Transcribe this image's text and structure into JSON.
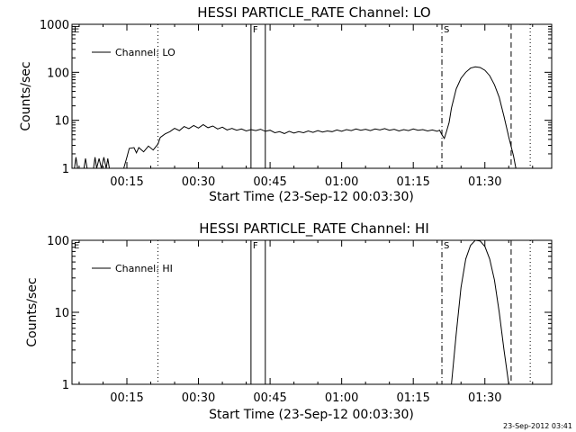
{
  "footer": {
    "timestamp": "23-Sep-2012 03:41"
  },
  "chart_data": [
    {
      "type": "line",
      "title": "HESSI PARTICLE_RATE Channel: LO",
      "xlabel": "Start Time (23-Sep-12 00:03:30)",
      "ylabel": "Counts/sec",
      "yscale": "log",
      "xlim": [
        "00:03:30",
        "01:44:00"
      ],
      "ylim": [
        1,
        1000
      ],
      "x_tick_labels": [
        "00:15",
        "00:30",
        "00:45",
        "01:00",
        "01:15",
        "01:30"
      ],
      "y_tick_labels": [
        "1",
        "10",
        "100",
        "1000"
      ],
      "legend": {
        "placement": "top-left",
        "entries": [
          "Channel: LO"
        ]
      },
      "markers": [
        {
          "label": "E",
          "time": "00:03:30",
          "style": "none"
        },
        {
          "label": "",
          "time": "00:21:30",
          "style": "dotted"
        },
        {
          "label": "F",
          "time": "00:41:00",
          "style": "solid"
        },
        {
          "label": "",
          "time": "00:44:00",
          "style": "solid"
        },
        {
          "label": "S",
          "time": "01:21:00",
          "style": "dash-dot"
        },
        {
          "label": "",
          "time": "01:35:30",
          "style": "dashed"
        },
        {
          "label": "",
          "time": "01:39:30",
          "style": "dotted"
        }
      ],
      "series": [
        {
          "points": [
            [
              "00:04:00",
              1
            ],
            [
              "00:04:20",
              1.7
            ],
            [
              "00:04:40",
              1
            ],
            [
              "00:06:00",
              1
            ],
            [
              "00:06:20",
              1.6
            ],
            [
              "00:06:40",
              1
            ],
            [
              "00:08:00",
              1
            ],
            [
              "00:08:20",
              1.7
            ],
            [
              "00:08:40",
              1
            ],
            [
              "00:09:10",
              1.6
            ],
            [
              "00:09:40",
              1
            ],
            [
              "00:10:10",
              1.7
            ],
            [
              "00:10:40",
              1
            ],
            [
              "00:11:00",
              1.6
            ],
            [
              "00:11:20",
              1
            ],
            [
              "00:14:20",
              1
            ],
            [
              "00:15:00",
              1.7
            ],
            [
              "00:15:30",
              2.6
            ],
            [
              "00:16:30",
              2.7
            ],
            [
              "00:17:00",
              2.1
            ],
            [
              "00:17:30",
              2.7
            ],
            [
              "00:18:30",
              2.2
            ],
            [
              "00:19:30",
              2.9
            ],
            [
              "00:20:30",
              2.4
            ],
            [
              "00:21:30",
              3.2
            ],
            [
              "00:22:00",
              4.4
            ],
            [
              "00:23:00",
              5.2
            ],
            [
              "00:24:00",
              5.8
            ],
            [
              "00:25:00",
              6.8
            ],
            [
              "00:26:00",
              6.1
            ],
            [
              "00:27:00",
              7.4
            ],
            [
              "00:28:00",
              6.7
            ],
            [
              "00:29:00",
              7.8
            ],
            [
              "00:30:00",
              6.9
            ],
            [
              "00:31:00",
              8.1
            ],
            [
              "00:32:00",
              7.0
            ],
            [
              "00:33:00",
              7.6
            ],
            [
              "00:34:00",
              6.6
            ],
            [
              "00:35:00",
              7.2
            ],
            [
              "00:36:00",
              6.3
            ],
            [
              "00:37:00",
              6.8
            ],
            [
              "00:38:00",
              6.2
            ],
            [
              "00:39:00",
              6.6
            ],
            [
              "00:40:00",
              6.0
            ],
            [
              "00:41:00",
              6.4
            ],
            [
              "00:42:00",
              6.1
            ],
            [
              "00:43:00",
              6.5
            ],
            [
              "00:44:00",
              5.9
            ],
            [
              "00:45:00",
              6.2
            ],
            [
              "00:46:00",
              5.5
            ],
            [
              "00:47:00",
              5.8
            ],
            [
              "00:48:00",
              5.3
            ],
            [
              "00:49:00",
              5.9
            ],
            [
              "00:50:00",
              5.4
            ],
            [
              "00:51:00",
              5.8
            ],
            [
              "00:52:00",
              5.5
            ],
            [
              "00:53:00",
              6.0
            ],
            [
              "00:54:00",
              5.6
            ],
            [
              "00:55:00",
              6.1
            ],
            [
              "00:56:00",
              5.7
            ],
            [
              "00:57:00",
              6.0
            ],
            [
              "00:58:00",
              5.8
            ],
            [
              "00:59:00",
              6.3
            ],
            [
              "01:00:00",
              5.9
            ],
            [
              "01:01:00",
              6.4
            ],
            [
              "01:02:00",
              6.1
            ],
            [
              "01:03:00",
              6.6
            ],
            [
              "01:04:00",
              6.2
            ],
            [
              "01:05:00",
              6.5
            ],
            [
              "01:06:00",
              6.1
            ],
            [
              "01:07:00",
              6.6
            ],
            [
              "01:08:00",
              6.3
            ],
            [
              "01:09:00",
              6.7
            ],
            [
              "01:10:00",
              6.2
            ],
            [
              "01:11:00",
              6.5
            ],
            [
              "01:12:00",
              6.0
            ],
            [
              "01:13:00",
              6.4
            ],
            [
              "01:14:00",
              6.1
            ],
            [
              "01:15:00",
              6.6
            ],
            [
              "01:16:00",
              6.2
            ],
            [
              "01:17:00",
              6.4
            ],
            [
              "01:18:00",
              6.0
            ],
            [
              "01:19:00",
              6.3
            ],
            [
              "01:20:00",
              5.9
            ],
            [
              "01:20:30",
              6.2
            ],
            [
              "01:21:00",
              5.0
            ],
            [
              "01:21:30",
              4.2
            ],
            [
              "01:22:00",
              6.0
            ],
            [
              "01:22:30",
              9.0
            ],
            [
              "01:23:00",
              18
            ],
            [
              "01:24:00",
              45
            ],
            [
              "01:25:00",
              75
            ],
            [
              "01:26:00",
              100
            ],
            [
              "01:27:00",
              122
            ],
            [
              "01:28:00",
              130
            ],
            [
              "01:29:00",
              126
            ],
            [
              "01:30:00",
              110
            ],
            [
              "01:31:00",
              85
            ],
            [
              "01:32:00",
              55
            ],
            [
              "01:33:00",
              30
            ],
            [
              "01:34:00",
              12
            ],
            [
              "01:35:00",
              4.5
            ],
            [
              "01:36:00",
              1.8
            ],
            [
              "01:36:30",
              1.0
            ]
          ]
        }
      ]
    },
    {
      "type": "line",
      "title": "HESSI PARTICLE_RATE Channel: HI",
      "xlabel": "Start Time (23-Sep-12 00:03:30)",
      "ylabel": "Counts/sec",
      "yscale": "log",
      "xlim": [
        "00:03:30",
        "01:44:00"
      ],
      "ylim": [
        1,
        100
      ],
      "x_tick_labels": [
        "00:15",
        "00:30",
        "00:45",
        "01:00",
        "01:15",
        "01:30"
      ],
      "y_tick_labels": [
        "1",
        "10",
        "100"
      ],
      "legend": {
        "placement": "top-left",
        "entries": [
          "Channel: HI"
        ]
      },
      "markers": [
        {
          "label": "E",
          "time": "00:03:30",
          "style": "none"
        },
        {
          "label": "",
          "time": "00:21:30",
          "style": "dotted"
        },
        {
          "label": "F",
          "time": "00:41:00",
          "style": "solid"
        },
        {
          "label": "",
          "time": "00:44:00",
          "style": "solid"
        },
        {
          "label": "S",
          "time": "01:21:00",
          "style": "dash-dot"
        },
        {
          "label": "",
          "time": "01:35:30",
          "style": "dashed"
        },
        {
          "label": "",
          "time": "01:39:30",
          "style": "dotted"
        }
      ],
      "series": [
        {
          "points": [
            [
              "01:23:00",
              1.0
            ],
            [
              "01:24:00",
              5
            ],
            [
              "01:25:00",
              22
            ],
            [
              "01:26:00",
              55
            ],
            [
              "01:27:00",
              85
            ],
            [
              "01:28:00",
              100
            ],
            [
              "01:29:00",
              98
            ],
            [
              "01:30:00",
              82
            ],
            [
              "01:31:00",
              55
            ],
            [
              "01:32:00",
              28
            ],
            [
              "01:33:00",
              10
            ],
            [
              "01:34:00",
              3
            ],
            [
              "01:35:00",
              1.0
            ]
          ]
        }
      ]
    }
  ]
}
